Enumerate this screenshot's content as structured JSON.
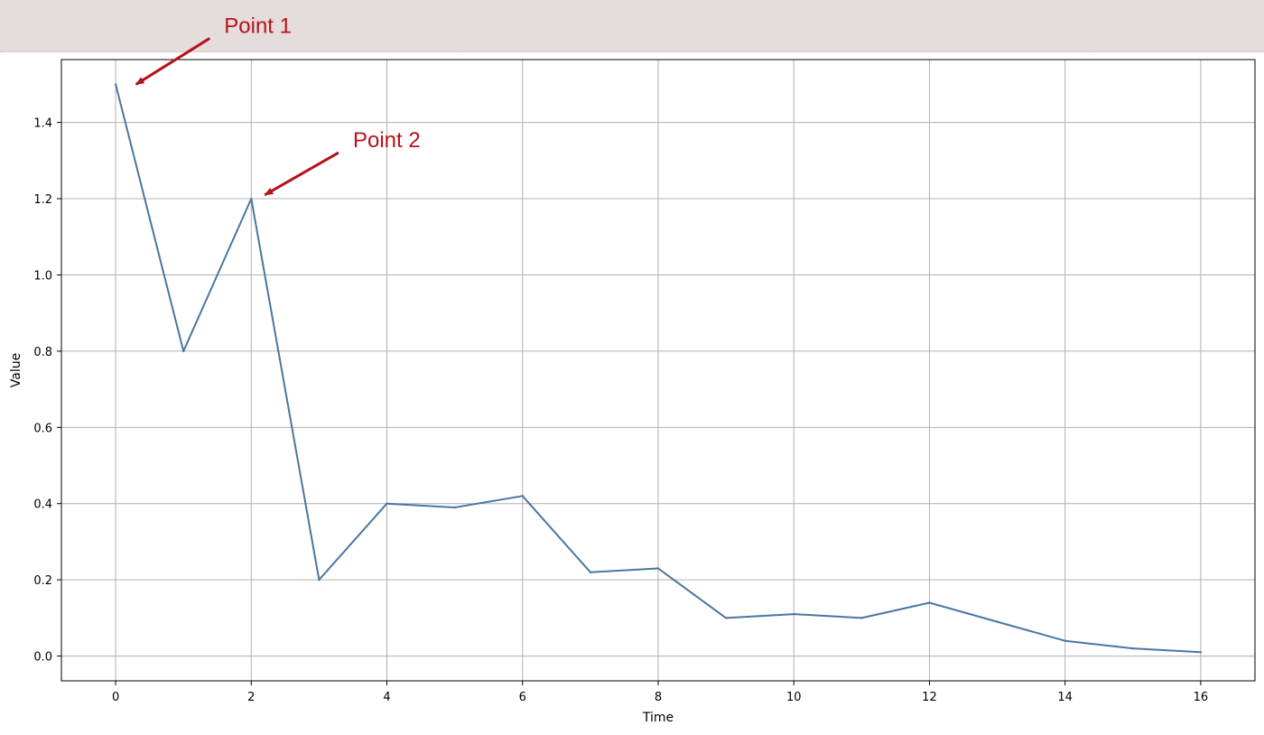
{
  "chart_data": {
    "type": "line",
    "title": "",
    "xlabel": "Time",
    "ylabel": "Value",
    "xlim": [
      -0.8,
      16.8
    ],
    "ylim": [
      -0.065,
      1.565
    ],
    "grid": true,
    "x_ticks": [
      0,
      2,
      4,
      6,
      8,
      10,
      12,
      14,
      16
    ],
    "y_ticks": [
      0.0,
      0.2,
      0.4,
      0.6,
      0.8,
      1.0,
      1.2,
      1.4
    ],
    "x_tick_labels": [
      "0",
      "2",
      "4",
      "6",
      "8",
      "10",
      "12",
      "14",
      "16"
    ],
    "y_tick_labels": [
      "0.0",
      "0.2",
      "0.4",
      "0.6",
      "0.8",
      "1.0",
      "1.2",
      "1.4"
    ],
    "series": [
      {
        "color": "#4a76a0",
        "x": [
          0,
          1,
          2,
          3,
          4,
          5,
          6,
          7,
          8,
          9,
          10,
          11,
          12,
          13,
          14,
          15,
          16
        ],
        "y": [
          1.5,
          0.8,
          1.2,
          0.2,
          0.4,
          0.39,
          0.42,
          0.22,
          0.23,
          0.1,
          0.11,
          0.1,
          0.14,
          0.09,
          0.04,
          0.02,
          0.01
        ]
      }
    ],
    "annotations": [
      {
        "text": "Point 1",
        "x": 0.3,
        "y": 1.5,
        "text_x": 1.6,
        "text_y": 1.635
      },
      {
        "text": "Point 2",
        "x": 2.2,
        "y": 1.21,
        "text_x": 3.5,
        "text_y": 1.335
      }
    ],
    "annotation_color": "#b5121b"
  }
}
